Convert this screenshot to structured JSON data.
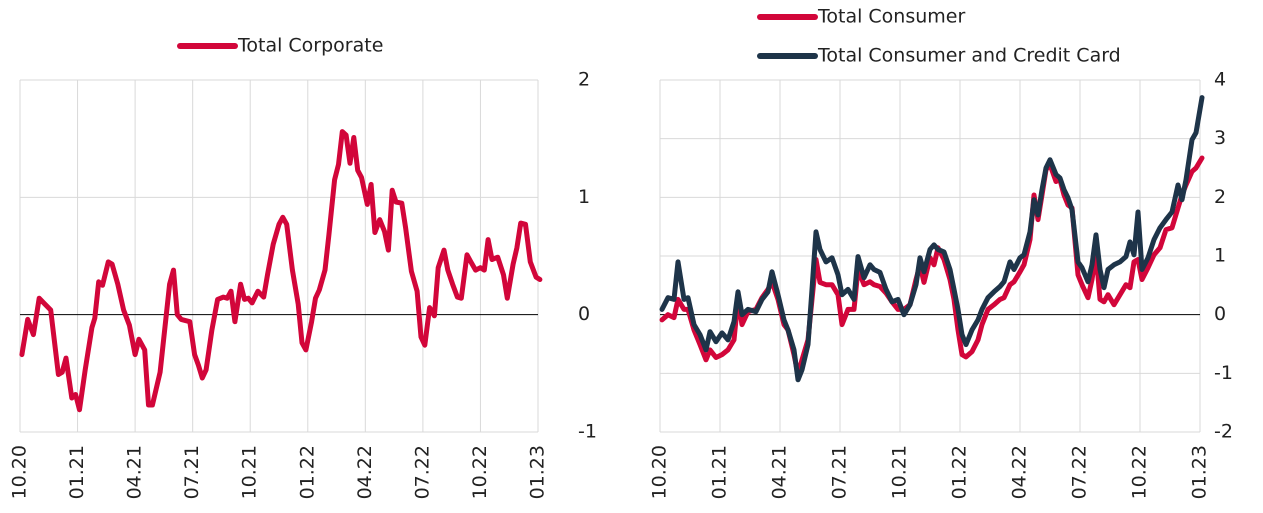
{
  "chart_data": [
    {
      "type": "line",
      "x": [
        0.1,
        0.4,
        0.7,
        1.0,
        1.3,
        1.6,
        2.0,
        2.2,
        2.4,
        2.7,
        2.9,
        3.1,
        3.4,
        3.75,
        3.9,
        4.1,
        4.3,
        4.6,
        4.8,
        5.1,
        5.4,
        5.7,
        6.0,
        6.2,
        6.5,
        6.7,
        6.9,
        7.3,
        7.6,
        7.8,
        8.0,
        8.2,
        8.4,
        8.85,
        9.1,
        9.3,
        9.5,
        9.7,
        10.0,
        10.3,
        10.6,
        10.8,
        11.0,
        11.2,
        11.5,
        11.7,
        11.9,
        12.1,
        12.4,
        12.7,
        12.9,
        13.2,
        13.5,
        13.7,
        13.9,
        14.2,
        14.5,
        14.7,
        14.9,
        15.2,
        15.4,
        15.6,
        15.9,
        16.1,
        16.4,
        16.6,
        16.8,
        17.0,
        17.2,
        17.4,
        17.6,
        17.8,
        18.1,
        18.3,
        18.5,
        18.75,
        19.0,
        19.2,
        19.4,
        19.6,
        19.9,
        20.1,
        20.4,
        20.7,
        20.9,
        21.1,
        21.35,
        21.6,
        21.8,
        22.1,
        22.3,
        22.55,
        22.8,
        23.0,
        23.3,
        23.5,
        23.75,
        24.0,
        24.2,
        24.4,
        24.6,
        24.9,
        25.2,
        25.4,
        25.7,
        25.9,
        26.1,
        26.35,
        26.6,
        26.9,
        27.1
      ],
      "series": [
        {
          "name": "Total Corporate",
          "color": "#d2063a",
          "values": [
            -0.34,
            -0.04,
            -0.17,
            0.14,
            0.09,
            0.04,
            -0.51,
            -0.49,
            -0.37,
            -0.71,
            -0.68,
            -0.81,
            -0.47,
            -0.11,
            -0.03,
            0.28,
            0.25,
            0.45,
            0.43,
            0.26,
            0.04,
            -0.09,
            -0.34,
            -0.21,
            -0.3,
            -0.77,
            -0.77,
            -0.49,
            -0.04,
            0.26,
            0.38,
            0,
            -0.04,
            -0.06,
            -0.34,
            -0.43,
            -0.54,
            -0.47,
            -0.13,
            0.13,
            0.15,
            0.14,
            0.2,
            -0.06,
            0.26,
            0.13,
            0.14,
            0.1,
            0.2,
            0.15,
            0.34,
            0.6,
            0.77,
            0.83,
            0.77,
            0.38,
            0.09,
            -0.24,
            -0.3,
            -0.06,
            0.14,
            0.21,
            0.38,
            0.68,
            1.15,
            1.28,
            1.56,
            1.53,
            1.29,
            1.51,
            1.23,
            1.17,
            0.94,
            1.11,
            0.7,
            0.81,
            0.71,
            0.55,
            1.06,
            0.96,
            0.95,
            0.74,
            0.37,
            0.2,
            -0.19,
            -0.26,
            0.06,
            -0.01,
            0.4,
            0.55,
            0.38,
            0.26,
            0.15,
            0.14,
            0.51,
            0.45,
            0.38,
            0.4,
            0.38,
            0.64,
            0.47,
            0.49,
            0.34,
            0.14,
            0.43,
            0.57,
            0.78,
            0.77,
            0.45,
            0.32,
            0.3
          ]
        }
      ],
      "xlim": [
        0,
        27
      ],
      "xticks": [
        {
          "value": 0,
          "label": "10.20"
        },
        {
          "value": 3,
          "label": "01.21"
        },
        {
          "value": 6,
          "label": "04.21"
        },
        {
          "value": 9,
          "label": "07.21"
        },
        {
          "value": 12,
          "label": "10.21"
        },
        {
          "value": 15,
          "label": "01.22"
        },
        {
          "value": 18,
          "label": "04.22"
        },
        {
          "value": 21,
          "label": "07.22"
        },
        {
          "value": 24,
          "label": "10.22"
        },
        {
          "value": 27,
          "label": "01.23"
        }
      ],
      "ylim": [
        -1,
        2
      ],
      "yticks": [
        -1,
        0,
        1,
        2
      ],
      "grid": true
    },
    {
      "type": "line",
      "x": [
        0.1,
        0.4,
        0.7,
        0.9,
        1.2,
        1.4,
        1.7,
        2.0,
        2.3,
        2.5,
        2.8,
        3.1,
        3.4,
        3.7,
        3.9,
        4.1,
        4.4,
        4.8,
        5.1,
        5.4,
        5.6,
        5.9,
        6.2,
        6.4,
        6.7,
        6.9,
        7.1,
        7.4,
        7.6,
        7.8,
        8.0,
        8.3,
        8.6,
        8.9,
        9.1,
        9.4,
        9.7,
        9.9,
        10.2,
        10.5,
        10.7,
        11.0,
        11.3,
        11.6,
        11.9,
        12.2,
        12.5,
        12.8,
        13.0,
        13.2,
        13.5,
        13.7,
        13.9,
        14.2,
        14.5,
        14.7,
        14.9,
        15.1,
        15.3,
        15.6,
        15.9,
        16.1,
        16.4,
        16.7,
        17.0,
        17.2,
        17.5,
        17.7,
        18.0,
        18.2,
        18.5,
        18.7,
        18.9,
        19.1,
        19.3,
        19.5,
        19.8,
        20.0,
        20.2,
        20.4,
        20.6,
        20.9,
        21.1,
        21.4,
        21.6,
        21.8,
        22.0,
        22.2,
        22.4,
        22.7,
        23.0,
        23.3,
        23.5,
        23.7,
        23.9,
        24.1,
        24.4,
        24.7,
        25.0,
        25.3,
        25.6,
        25.9,
        26.1,
        26.3,
        26.6,
        26.8,
        27.1
      ],
      "series": [
        {
          "name": "Total Consumer",
          "color": "#d2063a",
          "values": [
            -0.09,
            0,
            -0.05,
            0.26,
            0.09,
            0.09,
            -0.26,
            -0.51,
            -0.77,
            -0.6,
            -0.73,
            -0.68,
            -0.6,
            -0.43,
            0.26,
            -0.17,
            0.05,
            0.09,
            0.29,
            0.43,
            0.56,
            0.26,
            -0.17,
            -0.26,
            -0.68,
            -1.02,
            -0.77,
            -0.43,
            0.26,
            0.94,
            0.55,
            0.51,
            0.51,
            0.34,
            -0.17,
            0.09,
            0.09,
            0.77,
            0.51,
            0.56,
            0.51,
            0.48,
            0.37,
            0.22,
            0.09,
            0.09,
            0.17,
            0.6,
            0.85,
            0.55,
            0.97,
            0.85,
            1.14,
            0.94,
            0.6,
            0.26,
            -0.26,
            -0.68,
            -0.72,
            -0.63,
            -0.43,
            -0.17,
            0.09,
            0.17,
            0.26,
            0.29,
            0.51,
            0.56,
            0.73,
            0.85,
            1.28,
            2.04,
            1.62,
            2.04,
            2.47,
            2.56,
            2.27,
            2.3,
            2.04,
            1.87,
            1.82,
            0.68,
            0.51,
            0.29,
            0.6,
            1.06,
            0.26,
            0.22,
            0.34,
            0.17,
            0.34,
            0.51,
            0.46,
            0.9,
            0.94,
            0.6,
            0.8,
            1.02,
            1.14,
            1.45,
            1.48,
            1.82,
            2.04,
            2.21,
            2.44,
            2.5,
            2.67
          ]
        },
        {
          "name": "Total Consumer and Credit Card",
          "color": "#1e3449",
          "values": [
            0.09,
            0.29,
            0.26,
            0.9,
            0.26,
            0.29,
            -0.17,
            -0.34,
            -0.6,
            -0.29,
            -0.46,
            -0.31,
            -0.43,
            -0.12,
            0.39,
            0,
            0.09,
            0.05,
            0.26,
            0.39,
            0.73,
            0.34,
            -0.09,
            -0.26,
            -0.6,
            -1.11,
            -0.94,
            -0.51,
            0.43,
            1.41,
            1.11,
            0.9,
            0.97,
            0.68,
            0.34,
            0.43,
            0.26,
            0.99,
            0.63,
            0.85,
            0.77,
            0.72,
            0.43,
            0.22,
            0.26,
            0,
            0.17,
            0.51,
            0.97,
            0.73,
            1.11,
            1.19,
            1.11,
            1.07,
            0.77,
            0.43,
            0.09,
            -0.34,
            -0.51,
            -0.26,
            -0.09,
            0.09,
            0.29,
            0.39,
            0.48,
            0.56,
            0.9,
            0.77,
            0.97,
            1.02,
            1.41,
            1.96,
            1.7,
            2.13,
            2.5,
            2.64,
            2.39,
            2.33,
            2.13,
            1.99,
            1.79,
            0.9,
            0.8,
            0.56,
            0.85,
            1.36,
            0.77,
            0.46,
            0.77,
            0.85,
            0.9,
            0.99,
            1.24,
            1.02,
            1.75,
            0.77,
            0.97,
            1.28,
            1.48,
            1.62,
            1.75,
            2.21,
            1.96,
            2.3,
            2.98,
            3.1,
            3.7
          ]
        }
      ],
      "xlim": [
        0,
        27
      ],
      "xticks": [
        {
          "value": 0,
          "label": "10.20"
        },
        {
          "value": 3,
          "label": "01.21"
        },
        {
          "value": 6,
          "label": "04.21"
        },
        {
          "value": 9,
          "label": "07.21"
        },
        {
          "value": 12,
          "label": "10.21"
        },
        {
          "value": 15,
          "label": "01.22"
        },
        {
          "value": 18,
          "label": "04.22"
        },
        {
          "value": 21,
          "label": "07.22"
        },
        {
          "value": 24,
          "label": "10.22"
        },
        {
          "value": 27,
          "label": "01.23"
        }
      ],
      "ylim": [
        -2,
        4
      ],
      "yticks": [
        -2,
        -1,
        0,
        1,
        2,
        3,
        4
      ],
      "grid": true
    }
  ]
}
